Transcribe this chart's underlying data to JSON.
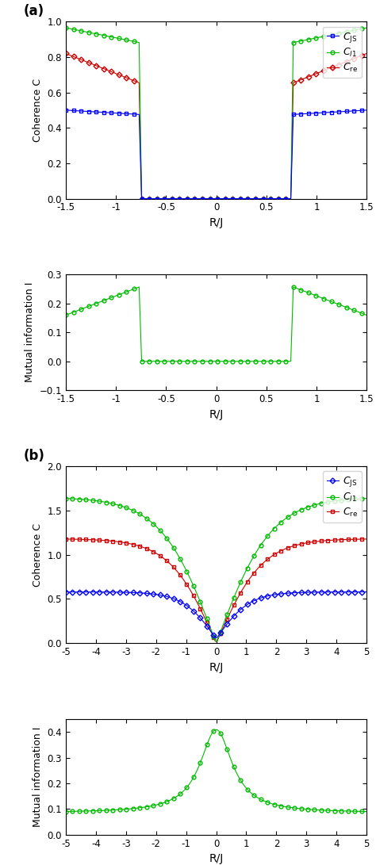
{
  "panel_a_label": "(a)",
  "panel_b_label": "(b)",
  "a_xlim": [
    -1.5,
    1.5
  ],
  "a_coh_ylim": [
    0,
    1.0
  ],
  "a_mi_ylim": [
    -0.1,
    0.3
  ],
  "a_coh_yticks": [
    0,
    0.2,
    0.4,
    0.6,
    0.8,
    1.0
  ],
  "a_mi_yticks": [
    -0.1,
    0,
    0.1,
    0.2,
    0.3
  ],
  "a_xticks": [
    -1.5,
    -1.0,
    -0.5,
    0,
    0.5,
    1.0,
    1.5
  ],
  "a_xlabel": "R/J",
  "a_coh_ylabel": "Coherence C",
  "a_mi_ylabel": "Mutual information I",
  "b_xlim": [
    -5,
    5
  ],
  "b_coh_ylim": [
    0,
    2.0
  ],
  "b_mi_ylim": [
    0,
    0.45
  ],
  "b_coh_yticks": [
    0,
    0.5,
    1.0,
    1.5,
    2.0
  ],
  "b_mi_yticks": [
    0,
    0.1,
    0.2,
    0.3,
    0.4
  ],
  "b_xticks": [
    -5,
    -4,
    -3,
    -2,
    -1,
    0,
    1,
    2,
    3,
    4,
    5
  ],
  "b_xlabel": "R/J",
  "b_coh_ylabel": "Coherence C",
  "b_mi_ylabel": "Mutual information I",
  "color_js": "#0000ff",
  "color_l1": "#00bb00",
  "color_re": "#cc0000",
  "marker_js_a": "s",
  "marker_js_b": "D",
  "marker_l1": "o",
  "marker_re_a": "D",
  "marker_re_b": "s",
  "markersize_a": 3.5,
  "markersize_b": 3.5,
  "linewidth": 0.8,
  "transition_a": 0.75,
  "figsize": [
    4.74,
    10.91
  ],
  "dpi": 100
}
